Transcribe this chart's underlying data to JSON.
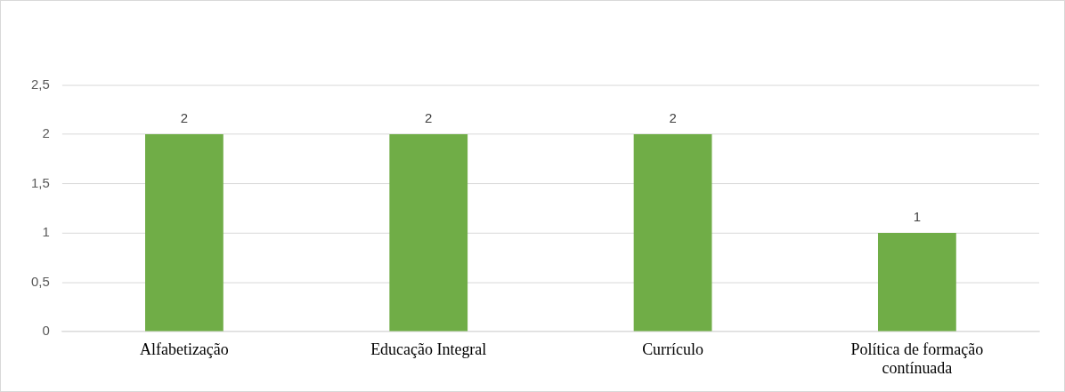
{
  "chart_data": {
    "type": "bar",
    "categories": [
      "Alfabetização",
      "Educação Integral",
      "Currículo",
      "Política de formação contínuada"
    ],
    "values": [
      2,
      2,
      2,
      1
    ],
    "color": "#70ad47",
    "ylim": [
      0,
      2.5
    ],
    "yticks": [
      0,
      {
        "value": 0.5,
        "label": "0,5"
      },
      1,
      {
        "value": 1.5,
        "label": "1,5"
      },
      2,
      {
        "value": 2.5,
        "label": "2,5"
      }
    ],
    "grid": "y",
    "data_labels": true
  }
}
